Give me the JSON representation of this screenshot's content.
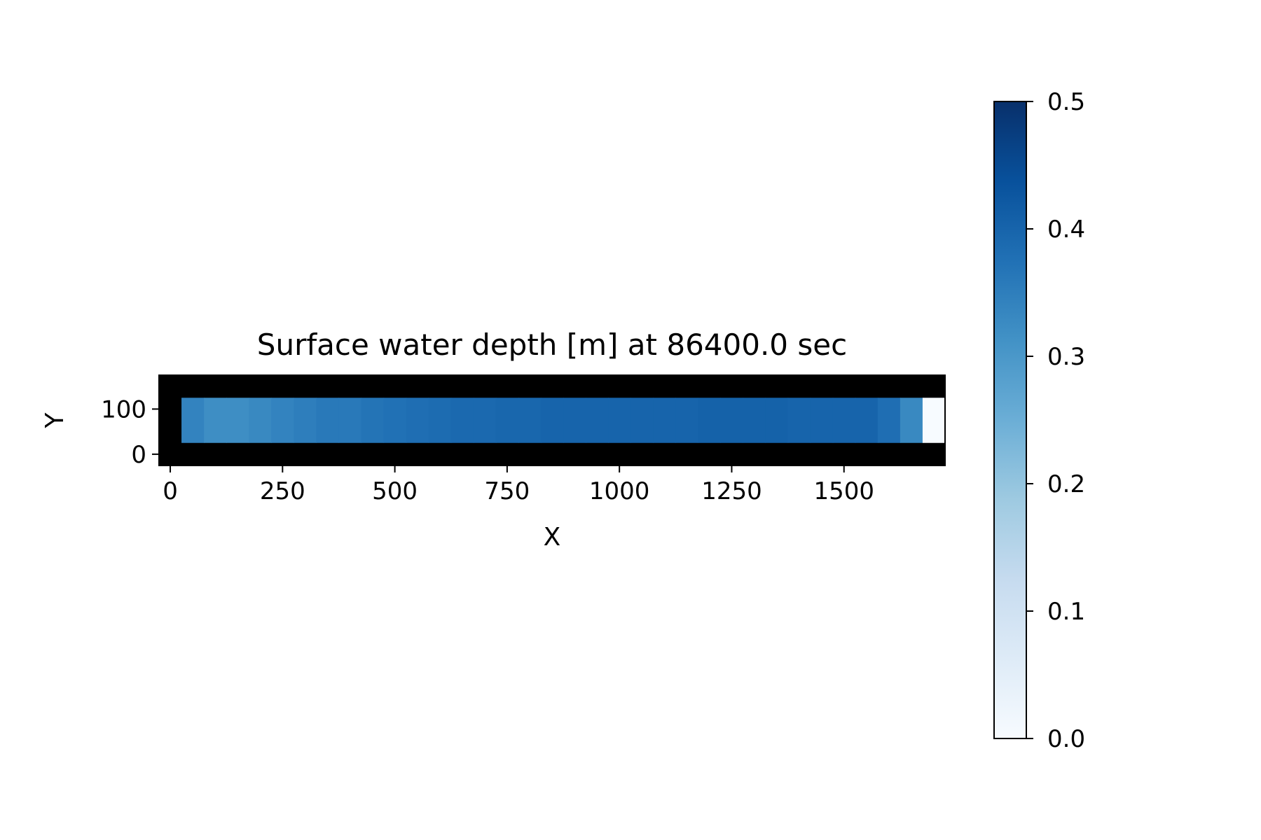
{
  "chart_data": {
    "type": "heatmap",
    "title": "Surface water depth [m] at 86400.0 sec",
    "xlabel": "X",
    "ylabel": "Y",
    "colormap": "Blues",
    "xlim": [
      -25,
      1725
    ],
    "ylim": [
      -25,
      175
    ],
    "x_ticks": [
      "0",
      "250",
      "500",
      "750",
      "1000",
      "1250",
      "1500"
    ],
    "y_ticks": [
      "0",
      "100"
    ],
    "x_tick_values": [
      0,
      250,
      500,
      750,
      1000,
      1250,
      1500
    ],
    "y_tick_values": [
      0,
      100
    ],
    "cell_size": 50,
    "core_y_range": [
      25,
      125
    ],
    "cells": [
      {
        "x": 50,
        "value": 0.34
      },
      {
        "x": 100,
        "value": 0.32
      },
      {
        "x": 150,
        "value": 0.32
      },
      {
        "x": 200,
        "value": 0.33
      },
      {
        "x": 250,
        "value": 0.34
      },
      {
        "x": 300,
        "value": 0.35
      },
      {
        "x": 350,
        "value": 0.36
      },
      {
        "x": 400,
        "value": 0.36
      },
      {
        "x": 450,
        "value": 0.37
      },
      {
        "x": 500,
        "value": 0.375
      },
      {
        "x": 550,
        "value": 0.38
      },
      {
        "x": 600,
        "value": 0.385
      },
      {
        "x": 650,
        "value": 0.39
      },
      {
        "x": 700,
        "value": 0.39
      },
      {
        "x": 750,
        "value": 0.395
      },
      {
        "x": 800,
        "value": 0.395
      },
      {
        "x": 850,
        "value": 0.4
      },
      {
        "x": 900,
        "value": 0.4
      },
      {
        "x": 950,
        "value": 0.4
      },
      {
        "x": 1000,
        "value": 0.4
      },
      {
        "x": 1050,
        "value": 0.4
      },
      {
        "x": 1100,
        "value": 0.4
      },
      {
        "x": 1150,
        "value": 0.4
      },
      {
        "x": 1200,
        "value": 0.405
      },
      {
        "x": 1250,
        "value": 0.405
      },
      {
        "x": 1300,
        "value": 0.405
      },
      {
        "x": 1350,
        "value": 0.405
      },
      {
        "x": 1400,
        "value": 0.4
      },
      {
        "x": 1450,
        "value": 0.4
      },
      {
        "x": 1500,
        "value": 0.4
      },
      {
        "x": 1550,
        "value": 0.4
      },
      {
        "x": 1600,
        "value": 0.38
      },
      {
        "x": 1650,
        "value": 0.33
      },
      {
        "x": 1700,
        "value": 0.0
      }
    ],
    "colorbar": {
      "range": [
        0.0,
        0.5
      ],
      "ticks": [
        "0.0",
        "0.1",
        "0.2",
        "0.3",
        "0.4",
        "0.5"
      ],
      "tick_values": [
        0.0,
        0.1,
        0.2,
        0.3,
        0.4,
        0.5
      ]
    },
    "colors": {
      "boundary": "#000000",
      "axes": "#000000",
      "text": "#000000"
    }
  }
}
